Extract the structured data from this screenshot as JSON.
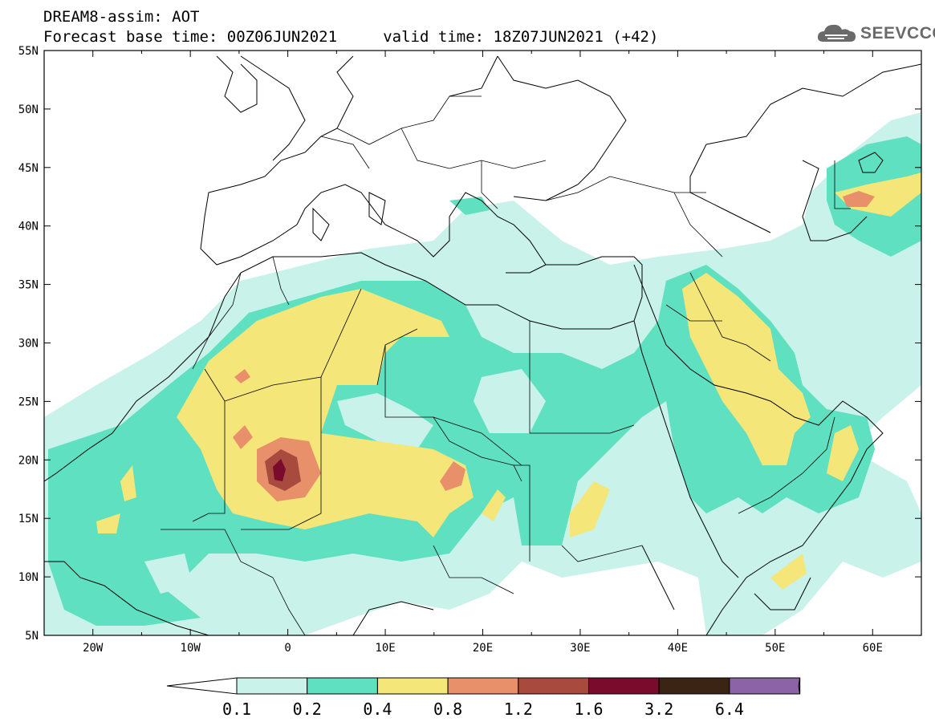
{
  "header": {
    "title_line1": "DREAM8-assim: AOT",
    "title_line2": "Forecast base time: 00Z06JUN2021     valid time: 18Z07JUN2021 (+42)"
  },
  "logo": {
    "text": "SEEVCCC",
    "icon": "cloud-icon"
  },
  "map": {
    "lon_labels": [
      "20W",
      "10W",
      "0",
      "10E",
      "20E",
      "30E",
      "40E",
      "50E",
      "60E"
    ],
    "lon_values": [
      -20,
      -10,
      0,
      10,
      20,
      30,
      40,
      50,
      60
    ],
    "lat_labels": [
      "55N",
      "50N",
      "45N",
      "40N",
      "35N",
      "30N",
      "25N",
      "20N",
      "15N",
      "10N",
      "5N"
    ],
    "lat_values": [
      55,
      50,
      45,
      40,
      35,
      30,
      25,
      20,
      15,
      10,
      5
    ],
    "lon_range": [
      -25,
      65
    ],
    "lat_range": [
      5,
      55
    ]
  },
  "colorbar": {
    "labels": [
      "0.1",
      "0.2",
      "0.4",
      "0.8",
      "1.2",
      "1.6",
      "3.2",
      "6.4"
    ],
    "colors": [
      "#ffffff",
      "#c9f2ea",
      "#5fe0c0",
      "#f4e678",
      "#e8906a",
      "#a84b3e",
      "#7a0b2c",
      "#3b2414",
      "#8b63a6"
    ]
  }
}
